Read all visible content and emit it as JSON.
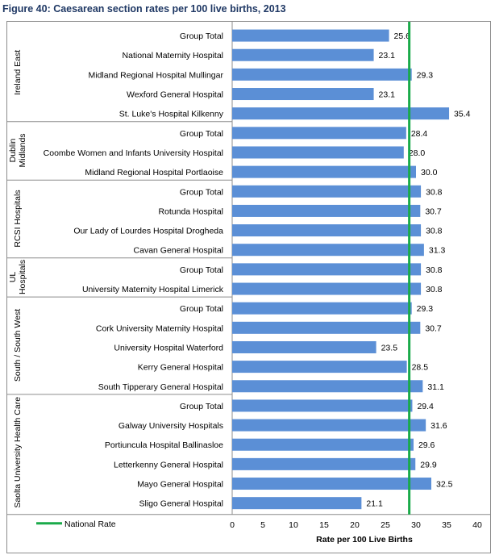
{
  "figure_title": "Figure 40: Caesarean section rates per 100 live births, 2013",
  "chart_data": {
    "type": "bar",
    "orientation": "horizontal",
    "title": "Figure 40: Caesarean section rates per 100 live births, 2013",
    "xlabel": "Rate per 100 Live Births",
    "ylabel": "",
    "xlim": [
      0,
      40
    ],
    "xticks": [
      0,
      5,
      10,
      15,
      20,
      25,
      30,
      35,
      40
    ],
    "grid": false,
    "bar_color": "#5b8fd6",
    "reference_line": {
      "name": "National Rate",
      "value": 28.9,
      "color": "#1aaa4a"
    },
    "legend": {
      "entries": [
        "National Rate"
      ],
      "placement": "bottom-left"
    },
    "groups": [
      {
        "name": "Ireland East",
        "label_lines": [
          "Ireland East"
        ],
        "rows": [
          {
            "label": "Group Total",
            "value": 25.6,
            "value_text": "25.6"
          },
          {
            "label": "National Maternity Hospital",
            "value": 23.1,
            "value_text": "23.1"
          },
          {
            "label": "Midland Regional Hospital Mullingar",
            "value": 29.3,
            "value_text": "29.3"
          },
          {
            "label": "Wexford General Hospital",
            "value": 23.1,
            "value_text": "23.1"
          },
          {
            "label": "St. Luke's Hospital Kilkenny",
            "value": 35.4,
            "value_text": "35.4"
          }
        ]
      },
      {
        "name": "Dublin Midlands",
        "label_lines": [
          "Dublin",
          "Midlands"
        ],
        "rows": [
          {
            "label": "Group Total",
            "value": 28.4,
            "value_text": "28.4"
          },
          {
            "label": "Coombe Women and Infants University Hospital",
            "value": 28.0,
            "value_text": "28.0"
          },
          {
            "label": "Midland Regional Hospital Portlaoise",
            "value": 30.0,
            "value_text": "30.0"
          }
        ]
      },
      {
        "name": "RCSI Hospitals",
        "label_lines": [
          "RCSI Hospitals"
        ],
        "rows": [
          {
            "label": "Group Total",
            "value": 30.8,
            "value_text": "30.8"
          },
          {
            "label": "Rotunda Hospital",
            "value": 30.7,
            "value_text": "30.7"
          },
          {
            "label": "Our Lady of Lourdes Hospital Drogheda",
            "value": 30.8,
            "value_text": "30.8"
          },
          {
            "label": "Cavan General Hospital",
            "value": 31.3,
            "value_text": "31.3"
          }
        ]
      },
      {
        "name": "UL Hospitals",
        "label_lines": [
          "UL",
          "Hospitals"
        ],
        "rows": [
          {
            "label": "Group Total",
            "value": 30.8,
            "value_text": "30.8"
          },
          {
            "label": "University Maternity Hospital Limerick",
            "value": 30.8,
            "value_text": "30.8"
          }
        ]
      },
      {
        "name": "South / South West",
        "label_lines": [
          "South / South West"
        ],
        "rows": [
          {
            "label": "Group Total",
            "value": 29.3,
            "value_text": "29.3"
          },
          {
            "label": "Cork University Maternity Hospital",
            "value": 30.7,
            "value_text": "30.7"
          },
          {
            "label": "University Hospital Waterford",
            "value": 23.5,
            "value_text": "23.5"
          },
          {
            "label": "Kerry General Hospital",
            "value": 28.5,
            "value_text": "28.5"
          },
          {
            "label": "South Tipperary General Hospital",
            "value": 31.1,
            "value_text": "31.1"
          }
        ]
      },
      {
        "name": "Saolta University Health Care",
        "label_lines": [
          "Saolta University Health Care"
        ],
        "rows": [
          {
            "label": "Group Total",
            "value": 29.4,
            "value_text": "29.4"
          },
          {
            "label": "Galway University Hospitals",
            "value": 31.6,
            "value_text": "31.6"
          },
          {
            "label": "Portiuncula Hospital Ballinasloe",
            "value": 29.6,
            "value_text": "29.6"
          },
          {
            "label": "Letterkenny General Hospital",
            "value": 29.9,
            "value_text": "29.9"
          },
          {
            "label": "Mayo General Hospital",
            "value": 32.5,
            "value_text": "32.5"
          },
          {
            "label": "Sligo General Hospital",
            "value": 21.1,
            "value_text": "21.1"
          }
        ]
      }
    ]
  }
}
